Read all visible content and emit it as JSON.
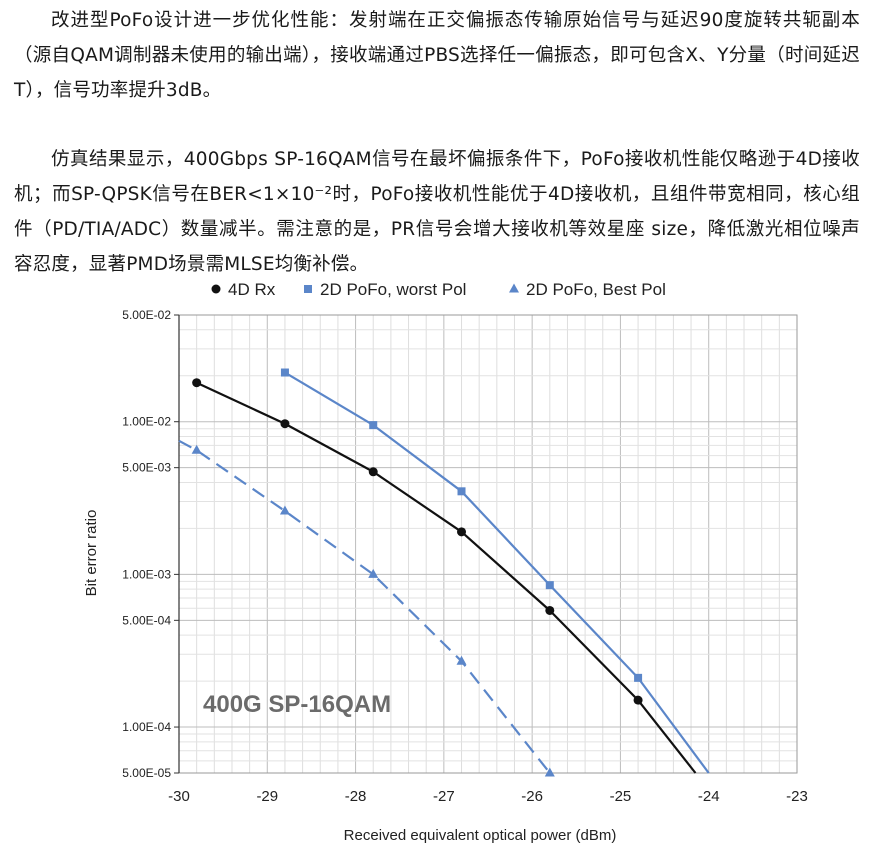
{
  "text": {
    "p1": "改进型PoFo设计进一步优化性能：发射端在正交偏振态传输原始信号与延迟90度旋转共轭副本（源自QAM调制器未使用的输出端），接收端通过PBS选择任一偏振态，即可包含X、Y分量（时间延迟T），信号功率提升3dB。",
    "p2": "仿真结果显示，400Gbps SP-16QAM信号在最坏偏振条件下，PoFo接收机性能仅略逊于4D接收机；而SP-QPSK信号在BER<1×10⁻²时，PoFo接收机性能优于4D接收机，且组件带宽相同，核心组件（PD/TIA/ADC）数量减半。需注意的是，PR信号会增大接收机等效星座 size，降低激光相位噪声容忍度，显著PMD场景需MLSE均衡补偿。"
  },
  "chart_data": {
    "type": "line",
    "title": "",
    "annotation": "400G SP-16QAM",
    "xlabel": "Received equivalent optical power (dBm)",
    "ylabel": "Bit error ratio",
    "xlim": [
      -30,
      -23
    ],
    "ylim": [
      5e-05,
      0.05
    ],
    "yscale": "log",
    "grid": true,
    "legend_position": "top",
    "x_ticks": [
      "-30",
      "-29",
      "-28",
      "-27",
      "-26",
      "-25",
      "-24",
      "-23"
    ],
    "y_ticks": [
      {
        "value": 0.05,
        "label": "5.00E-02"
      },
      {
        "value": 0.01,
        "label": "1.00E-02"
      },
      {
        "value": 0.005,
        "label": "5.00E-03"
      },
      {
        "value": 0.001,
        "label": "1.00E-03"
      },
      {
        "value": 0.0005,
        "label": "5.00E-04"
      },
      {
        "value": 0.0001,
        "label": "1.00E-04"
      },
      {
        "value": 5e-05,
        "label": "5.00E-05"
      }
    ],
    "series": [
      {
        "name": "4D Rx",
        "marker": "circle",
        "color": "#111111",
        "dashed": false,
        "x": [
          -29.8,
          -28.8,
          -27.8,
          -26.8,
          -25.8,
          -24.8,
          -24.15
        ],
        "y": [
          0.018,
          0.0097,
          0.0047,
          0.0019,
          0.00058,
          0.00015,
          5e-05
        ],
        "markers": [
          true,
          true,
          true,
          true,
          true,
          true,
          false
        ]
      },
      {
        "name": "2D PoFo, worst Pol",
        "marker": "square",
        "color": "#5b86c9",
        "dashed": false,
        "x": [
          -28.8,
          -27.8,
          -26.8,
          -25.8,
          -24.8,
          -24.0
        ],
        "y": [
          0.021,
          0.0095,
          0.0035,
          0.00085,
          0.00021,
          5e-05
        ],
        "markers": [
          true,
          true,
          true,
          true,
          true,
          false
        ]
      },
      {
        "name": "2D PoFo, Best Pol",
        "marker": "triangle",
        "color": "#5b86c9",
        "dashed": true,
        "x": [
          -30.0,
          -29.8,
          -28.8,
          -27.8,
          -26.8,
          -25.8
        ],
        "y": [
          0.0075,
          0.0065,
          0.0026,
          0.001,
          0.00027,
          5e-05
        ],
        "markers": [
          false,
          true,
          true,
          true,
          true,
          true
        ]
      }
    ]
  }
}
